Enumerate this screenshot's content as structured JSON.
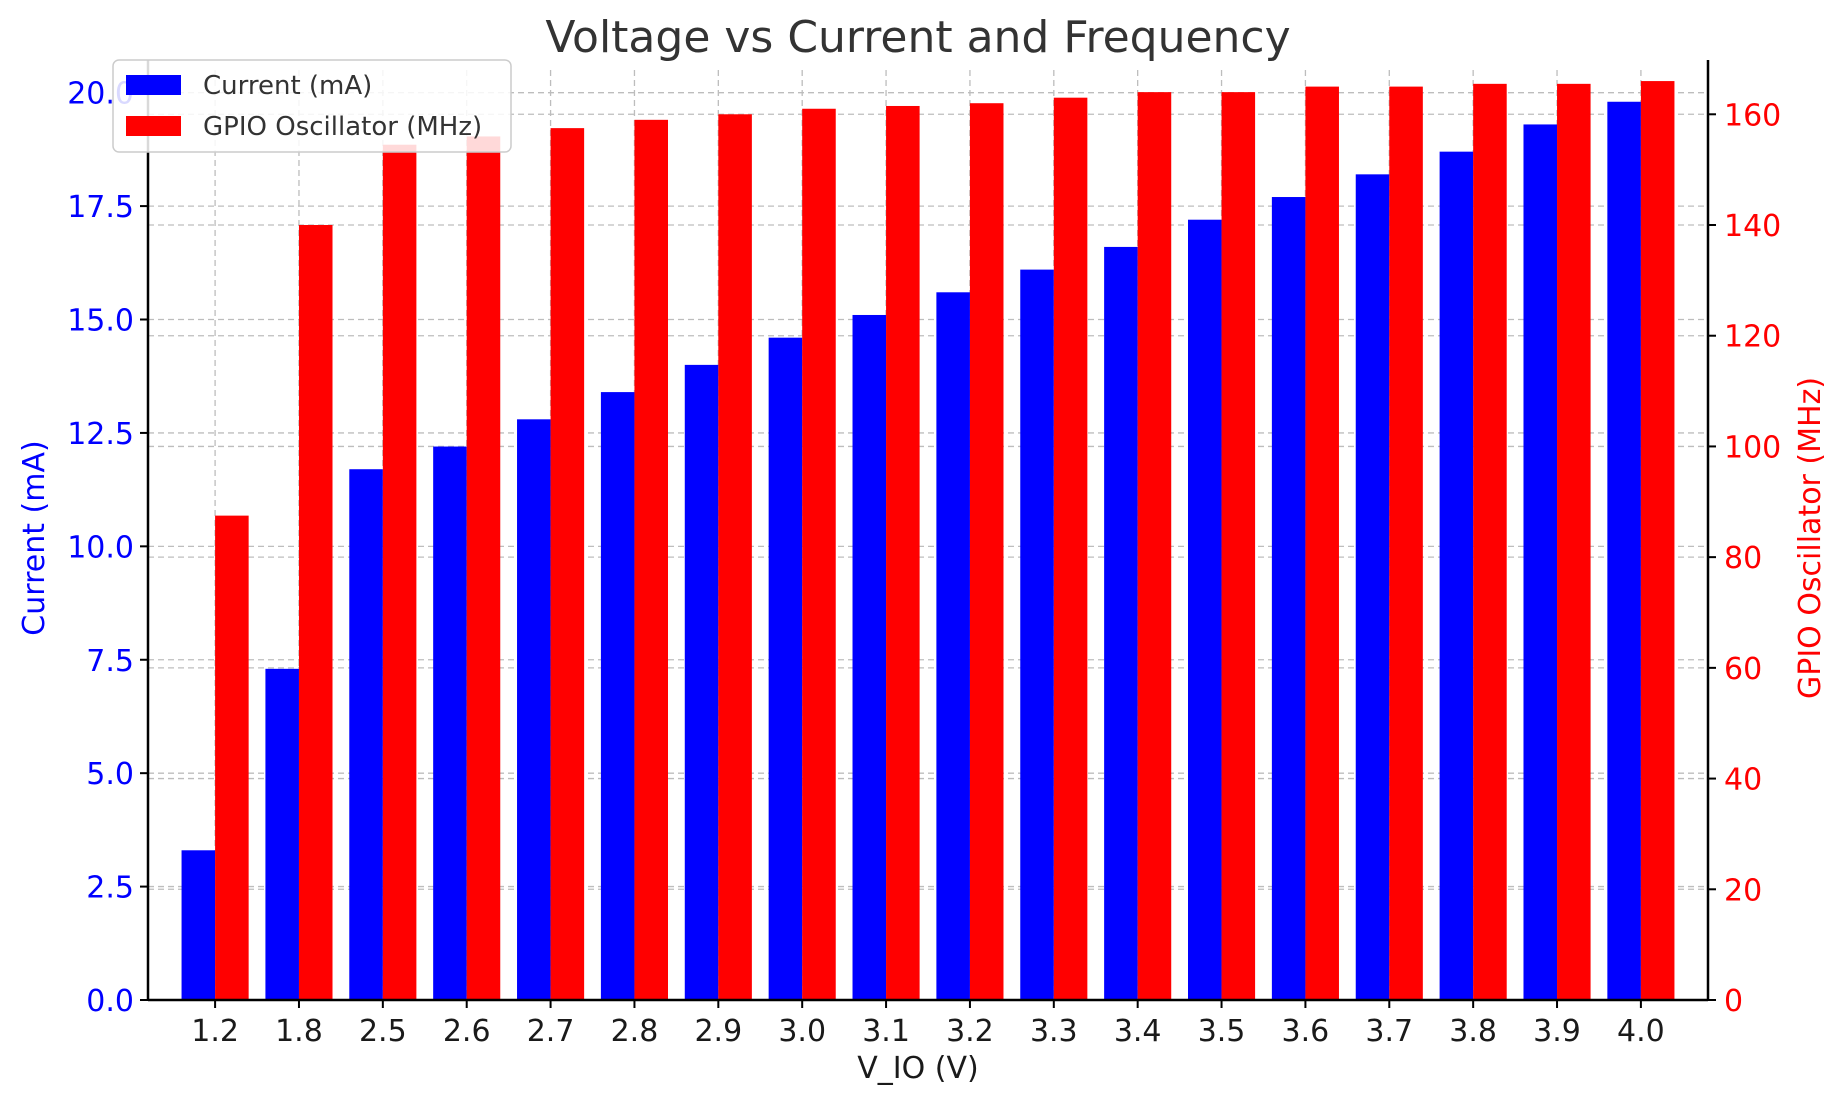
{
  "chart_data": {
    "type": "bar",
    "title": "Voltage vs Current and Frequency",
    "xlabel": "V_IO (V)",
    "ylabel_left": "Current (mA)",
    "ylabel_right": "GPIO Oscillator (MHz)",
    "categories": [
      "1.2",
      "1.8",
      "2.5",
      "2.6",
      "2.7",
      "2.8",
      "2.9",
      "3.0",
      "3.1",
      "3.2",
      "3.3",
      "3.4",
      "3.5",
      "3.6",
      "3.7",
      "3.8",
      "3.9",
      "4.0"
    ],
    "series": [
      {
        "name": "Current (mA)",
        "axis": "left",
        "color": "#0000ff",
        "values": [
          3.3,
          7.3,
          11.7,
          12.2,
          12.8,
          13.4,
          14.0,
          14.6,
          15.1,
          15.6,
          16.1,
          16.6,
          17.2,
          17.7,
          18.2,
          18.7,
          19.3,
          19.8
        ]
      },
      {
        "name": "GPIO Oscillator (MHz)",
        "axis": "right",
        "color": "#ff0000",
        "values": [
          87.5,
          140,
          154.5,
          156,
          157.5,
          159,
          160,
          161,
          161.5,
          162,
          163,
          164,
          164,
          165,
          165,
          165.5,
          165.5,
          166
        ]
      }
    ],
    "ylim_left": [
      0,
      20.5
    ],
    "ylim_right": [
      0,
      168
    ],
    "yticks_left": [
      "0.0",
      "2.5",
      "5.0",
      "7.5",
      "10.0",
      "12.5",
      "15.0",
      "17.5",
      "20.0"
    ],
    "yticks_right": [
      "0",
      "20",
      "40",
      "60",
      "80",
      "100",
      "120",
      "140",
      "160"
    ],
    "grid": true,
    "legend": "top-left"
  }
}
